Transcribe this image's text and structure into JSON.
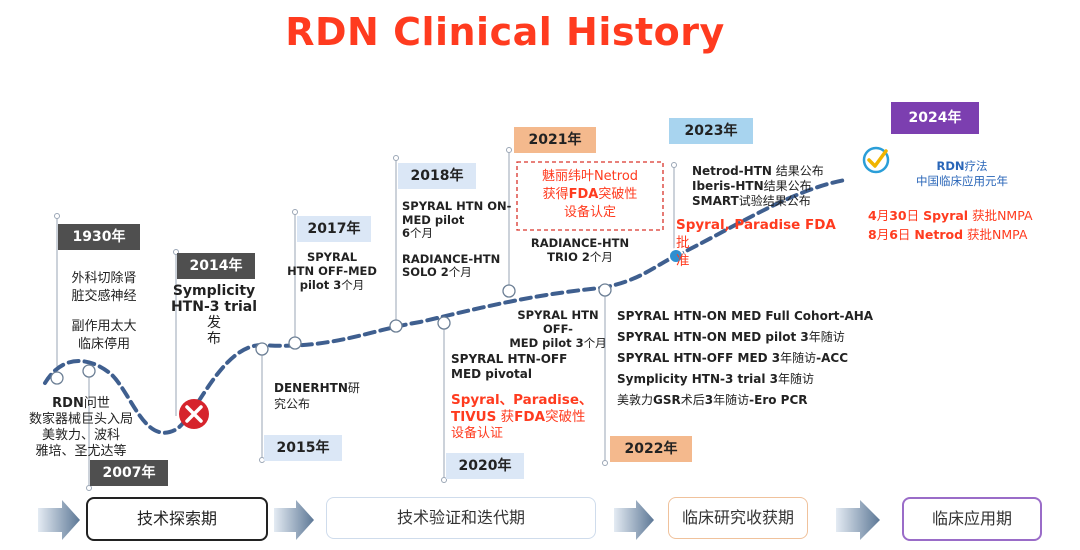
{
  "title": "RDN Clinical History",
  "years": {
    "y1930": "1930年",
    "y2007": "2007年",
    "y2014": "2014年",
    "y2015": "2015年",
    "y2017": "2017年",
    "y2018": "2018年",
    "y2020": "2020年",
    "y2021": "2021年",
    "y2022": "2022年",
    "y2023": "2023年",
    "y2024": "2024年"
  },
  "events": {
    "e1930_l1": "外科切除肾",
    "e1930_l2": "脏交感神经",
    "e1930_l3": "副作用太大",
    "e1930_l4": "临床停用",
    "e2007_l1_b": "RDN",
    "e2007_l1_r": "问世",
    "e2007_l2": "数家器械巨头入局",
    "e2007_l3": "美敦力、波科",
    "e2007_l4": "雅培、圣尤达等",
    "e2014_l1": "Symplicity",
    "e2014_l2_b": "HTN-3 trial",
    "e2014_l2_r": " 发",
    "e2014_l3": "布",
    "e2015_l1_b": "DENERHTN",
    "e2015_l1_r": "研",
    "e2015_l2": "究公布",
    "e2017_l1": "SPYRAL",
    "e2017_l2": "HTN OFF-MED",
    "e2017_l3_b": "pilot 3",
    "e2017_l3_r": "个月",
    "e2018_l1": "SPYRAL HTN ON-",
    "e2018_l2": "MED pilot",
    "e2018_l3_b": "6",
    "e2018_l3_r": "个月",
    "e2018_l4": "RADIANCE-HTN",
    "e2018_l5_b": "SOLO 2",
    "e2018_l5_r": "个月",
    "e2019_l1": "SPYRAL HTN OFF-",
    "e2019_l2_b": "MED pilot 3",
    "e2019_l2_r": "个月",
    "e2020_l1": "SPYRAL HTN-OFF",
    "e2020_l2": "MED pivotal",
    "e2020_l3": "Spyral、Paradise、",
    "e2020_l4_b": "TIVUS",
    "e2020_l4_m": " 获",
    "e2020_l4_c": "FDA",
    "e2020_l4_r": "突破性",
    "e2020_l5": "设备认证",
    "e2021_l1": "魅丽纬叶Netrod",
    "e2021_l2_a": "获得",
    "e2021_l2_b": "FDA",
    "e2021_l2_c": "突破性",
    "e2021_l3": "设备认定",
    "e2021_l4": "RADIANCE-HTN",
    "e2021_l5_b": "TRIO 2",
    "e2021_l5_r": "个月",
    "e2022_l1": "SPYRAL HTN-ON MED Full Cohort-AHA",
    "e2022_l2_b": "SPYRAL HTN-ON MED pilot 3",
    "e2022_l2_r": "年随访",
    "e2022_l3_b": "SPYRAL HTN-OFF MED  3",
    "e2022_l3_r": "年随访",
    "e2022_l3_c": "-ACC",
    "e2022_l4_b": "Symplicity HTN-3 trial 3",
    "e2022_l4_r": "年随访",
    "e2022_l5_a": "美敦力",
    "e2022_l5_b": "GSR",
    "e2022_l5_c": "术后",
    "e2022_l5_d": "3",
    "e2022_l5_e": "年随访",
    "e2022_l5_f": "-Ero PCR",
    "e2023_l1_b": "Netrod-HTN",
    "e2023_l1_r": " 结果公布",
    "e2023_l2_b": "Iberis-HTN",
    "e2023_l2_r": "结果公布",
    "e2023_l3_b": "SMART",
    "e2023_l3_r": "试验结果公布",
    "e2023_l4": "Spyral, Paradise FDA",
    "e2023_l4_r": "批",
    "e2023_l5": "准",
    "e2024_l1_a": "RDN",
    "e2024_l1_b": "疗法",
    "e2024_l2": "中国临床应用元年",
    "e2024_l3_a": "4",
    "e2024_l3_b": "月",
    "e2024_l3_c": "30",
    "e2024_l3_d": "日  ",
    "e2024_l3_e": "Spyral",
    "e2024_l3_f": " 获批NMPA",
    "e2024_l4_a": "8",
    "e2024_l4_b": "月",
    "e2024_l4_c": "6",
    "e2024_l4_d": "日     ",
    "e2024_l4_e": "Netrod",
    "e2024_l4_f": " 获批NMPA"
  },
  "stages": {
    "s1": "技术探索期",
    "s2": "技术验证和迭代期",
    "s3": "临床研究收获期",
    "s4": "临床应用期"
  },
  "colors": {
    "accent_red": "#ff3b1f",
    "curve_blue": "#3f5f8f",
    "arrow_blue": "#5d7896",
    "purple": "#7c3fb0"
  },
  "icons": {
    "fail": "red-x-circle-icon",
    "success": "check-circle-icon"
  }
}
